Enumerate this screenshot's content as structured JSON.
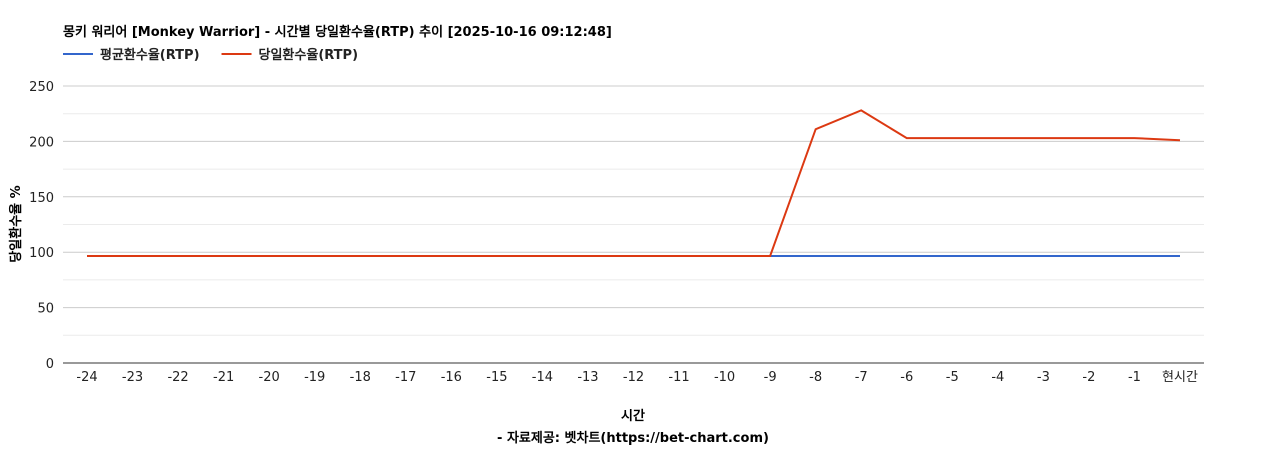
{
  "chart_data": {
    "type": "line",
    "title": "몽키 워리어 [Monkey Warrior] - 시간별 당일환수율(RTP) 추이 [2025-10-16 09:12:48]",
    "xlabel": "시간",
    "ylabel": "당일환수율 %",
    "footer": "- 자료제공: 벳차트(https://bet-chart.com)",
    "categories": [
      "-24",
      "-23",
      "-22",
      "-21",
      "-20",
      "-19",
      "-18",
      "-17",
      "-16",
      "-15",
      "-14",
      "-13",
      "-12",
      "-11",
      "-10",
      "-9",
      "-8",
      "-7",
      "-6",
      "-5",
      "-4",
      "-3",
      "-2",
      "-1",
      "현시간"
    ],
    "ylim": [
      0,
      250
    ],
    "yticks": [
      "0",
      "50",
      "100",
      "150",
      "200",
      "250"
    ],
    "grid": true,
    "legend": "top-left",
    "series": [
      {
        "name": "평균환수율(RTP)",
        "color": "#3366cc",
        "values": [
          96.6,
          96.6,
          96.6,
          96.6,
          96.6,
          96.6,
          96.6,
          96.6,
          96.6,
          96.6,
          96.6,
          96.6,
          96.6,
          96.6,
          96.6,
          96.6,
          96.6,
          96.6,
          96.6,
          96.6,
          96.6,
          96.6,
          96.6,
          96.6,
          96.6
        ]
      },
      {
        "name": "당일환수율(RTP)",
        "color": "#dc3912",
        "values": [
          96.6,
          96.6,
          96.6,
          96.6,
          96.6,
          96.6,
          96.6,
          96.6,
          96.6,
          96.6,
          96.6,
          96.6,
          96.6,
          96.6,
          96.6,
          96.6,
          211,
          228,
          203,
          203,
          203,
          203,
          203,
          203,
          201
        ]
      }
    ]
  }
}
